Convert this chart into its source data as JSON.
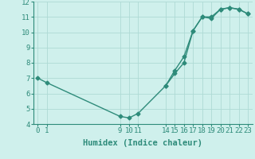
{
  "line1_x": [
    0,
    1,
    9,
    10,
    11,
    14,
    15,
    16,
    17,
    18,
    19,
    20,
    21,
    22,
    23
  ],
  "line1_y": [
    7.0,
    6.7,
    4.5,
    4.4,
    4.7,
    6.5,
    7.5,
    8.4,
    10.1,
    11.0,
    10.9,
    11.5,
    11.6,
    11.5,
    11.2
  ],
  "line2_x": [
    14,
    15,
    16,
    17,
    18,
    19,
    20,
    21,
    22,
    23
  ],
  "line2_y": [
    6.5,
    7.3,
    8.0,
    10.1,
    11.0,
    11.0,
    11.5,
    11.6,
    11.5,
    11.2
  ],
  "line_color": "#2e8b7a",
  "bg_color": "#cff0ec",
  "grid_color": "#aedad5",
  "xlabel": "Humidex (Indice chaleur)",
  "xlim": [
    -0.5,
    23.5
  ],
  "ylim": [
    4,
    12
  ],
  "xticks": [
    0,
    1,
    9,
    10,
    11,
    14,
    15,
    16,
    17,
    18,
    19,
    20,
    21,
    22,
    23
  ],
  "yticks": [
    4,
    5,
    6,
    7,
    8,
    9,
    10,
    11,
    12
  ],
  "xlabel_fontsize": 7.5,
  "tick_fontsize": 6.5,
  "marker": "D",
  "marker_size": 2.5,
  "linewidth": 1.0
}
